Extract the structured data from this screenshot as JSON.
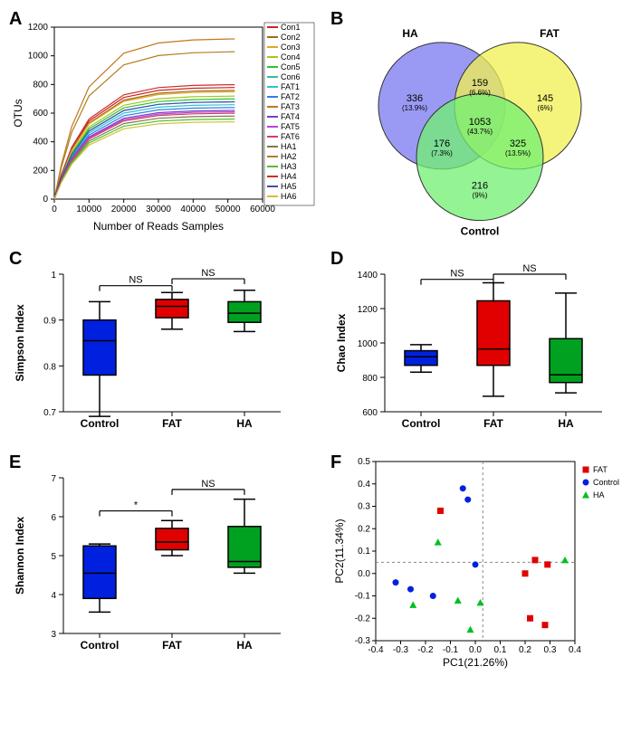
{
  "panelA": {
    "label": "A",
    "type": "line",
    "xlabel": "Number of Reads Samples",
    "ylabel": "OTUs",
    "xlim": [
      0,
      60000
    ],
    "ylim": [
      0,
      1200
    ],
    "xticks": [
      0,
      10000,
      20000,
      30000,
      40000,
      50000,
      60000
    ],
    "yticks": [
      0,
      200,
      400,
      600,
      800,
      1000,
      1200
    ],
    "legend": [
      {
        "label": "Con1",
        "color": "#d42020"
      },
      {
        "label": "Con2",
        "color": "#9d6d1c"
      },
      {
        "label": "Con3",
        "color": "#e0a828"
      },
      {
        "label": "Con4",
        "color": "#a0c828"
      },
      {
        "label": "Con5",
        "color": "#30c030"
      },
      {
        "label": "Con6",
        "color": "#30c0a0"
      },
      {
        "label": "FAT1",
        "color": "#30c0e0"
      },
      {
        "label": "FAT2",
        "color": "#3080e0"
      },
      {
        "label": "FAT3",
        "color": "#c07820"
      },
      {
        "label": "FAT4",
        "color": "#7040d0"
      },
      {
        "label": "FAT5",
        "color": "#c040d0"
      },
      {
        "label": "FAT6",
        "color": "#d04060"
      },
      {
        "label": "HA1",
        "color": "#807850"
      },
      {
        "label": "HA2",
        "color": "#b08020"
      },
      {
        "label": "HA3",
        "color": "#50c030"
      },
      {
        "label": "HA4",
        "color": "#c83030"
      },
      {
        "label": "HA5",
        "color": "#4050b0"
      },
      {
        "label": "HA6",
        "color": "#d0c030"
      }
    ],
    "curves_end": [
      780,
      760,
      750,
      720,
      700,
      680,
      660,
      640,
      1120,
      620,
      610,
      600,
      580,
      1030,
      560,
      800,
      680,
      540
    ],
    "highlight_curves": {
      "8": 1120,
      "13": 1030,
      "15": 800
    }
  },
  "panelB": {
    "label": "B",
    "type": "venn",
    "groups": [
      {
        "name": "HA",
        "color": "#7878f0",
        "opacity": 0.75
      },
      {
        "name": "FAT",
        "color": "#f0f050",
        "opacity": 0.75
      },
      {
        "name": "Control",
        "color": "#70f070",
        "opacity": 0.75
      }
    ],
    "regions": {
      "HA_only": {
        "n": 336,
        "pct": "(13.9%)"
      },
      "FAT_only": {
        "n": 145,
        "pct": "(6%)"
      },
      "Control_only": {
        "n": 216,
        "pct": "(9%)"
      },
      "HA_FAT": {
        "n": 159,
        "pct": "(6.6%)"
      },
      "HA_Control": {
        "n": 176,
        "pct": "(7.3%)"
      },
      "FAT_Control": {
        "n": 325,
        "pct": "(13.5%)"
      },
      "all": {
        "n": 1053,
        "pct": "(43.7%)"
      }
    }
  },
  "panelC": {
    "label": "C",
    "type": "boxplot",
    "ylabel": "Simpson Index",
    "ylim": [
      0.7,
      1.0
    ],
    "yticks": [
      0.7,
      0.8,
      0.9,
      1.0
    ],
    "categories": [
      "Control",
      "FAT",
      "HA"
    ],
    "colors": [
      "#0020e0",
      "#e00000",
      "#00a020"
    ],
    "boxes": [
      {
        "min": 0.69,
        "q1": 0.78,
        "med": 0.855,
        "q3": 0.9,
        "max": 0.94
      },
      {
        "min": 0.88,
        "q1": 0.905,
        "med": 0.93,
        "q3": 0.945,
        "max": 0.96
      },
      {
        "min": 0.875,
        "q1": 0.895,
        "med": 0.915,
        "q3": 0.94,
        "max": 0.965
      }
    ],
    "annotations": [
      {
        "from": 0,
        "to": 1,
        "text": "NS",
        "y": 0.975
      },
      {
        "from": 1,
        "to": 2,
        "text": "NS",
        "y": 0.99
      }
    ]
  },
  "panelD": {
    "label": "D",
    "type": "boxplot",
    "ylabel": "Chao Index",
    "ylim": [
      600,
      1400
    ],
    "yticks": [
      600,
      800,
      1000,
      1200,
      1400
    ],
    "categories": [
      "Control",
      "FAT",
      "HA"
    ],
    "colors": [
      "#0020e0",
      "#e00000",
      "#00a020"
    ],
    "boxes": [
      {
        "min": 830,
        "q1": 870,
        "med": 920,
        "q3": 955,
        "max": 990
      },
      {
        "min": 690,
        "q1": 870,
        "med": 965,
        "q3": 1245,
        "max": 1350
      },
      {
        "min": 710,
        "q1": 770,
        "med": 815,
        "q3": 1025,
        "max": 1290
      }
    ],
    "annotations": [
      {
        "from": 0,
        "to": 1,
        "text": "NS",
        "y": 1370
      },
      {
        "from": 1,
        "to": 2,
        "text": "NS",
        "y": 1400
      }
    ]
  },
  "panelE": {
    "label": "E",
    "type": "boxplot",
    "ylabel": "Shannon Index",
    "ylim": [
      3,
      7
    ],
    "yticks": [
      3,
      4,
      5,
      6,
      7
    ],
    "categories": [
      "Control",
      "FAT",
      "HA"
    ],
    "colors": [
      "#0020e0",
      "#e00000",
      "#00a020"
    ],
    "boxes": [
      {
        "min": 3.55,
        "q1": 3.9,
        "med": 4.55,
        "q3": 5.25,
        "max": 5.3
      },
      {
        "min": 5.0,
        "q1": 5.15,
        "med": 5.35,
        "q3": 5.7,
        "max": 5.9
      },
      {
        "min": 4.55,
        "q1": 4.7,
        "med": 4.85,
        "q3": 5.75,
        "max": 6.45
      }
    ],
    "annotations": [
      {
        "from": 0,
        "to": 1,
        "text": "*",
        "y": 6.15
      },
      {
        "from": 1,
        "to": 2,
        "text": "NS",
        "y": 6.7
      }
    ]
  },
  "panelF": {
    "label": "F",
    "type": "scatter",
    "xlabel": "PC1(21.26%)",
    "ylabel": "PC2(11.34%)",
    "xlim": [
      -0.4,
      0.4
    ],
    "ylim": [
      -0.3,
      0.5
    ],
    "xticks": [
      -0.4,
      -0.3,
      -0.2,
      -0.1,
      0.0,
      0.1,
      0.2,
      0.3,
      0.4
    ],
    "yticks": [
      -0.3,
      -0.2,
      -0.1,
      0.0,
      0.1,
      0.2,
      0.3,
      0.4,
      0.5
    ],
    "legend": [
      {
        "label": "FAT",
        "marker": "square",
        "color": "#e00000"
      },
      {
        "label": "Control",
        "marker": "circle",
        "color": "#0020e0"
      },
      {
        "label": "HA",
        "marker": "triangle",
        "color": "#00c020"
      }
    ],
    "points": {
      "FAT": [
        {
          "x": -0.14,
          "y": 0.28
        },
        {
          "x": 0.2,
          "y": 0.0
        },
        {
          "x": 0.24,
          "y": 0.06
        },
        {
          "x": 0.29,
          "y": 0.04
        },
        {
          "x": 0.22,
          "y": -0.2
        },
        {
          "x": 0.28,
          "y": -0.23
        }
      ],
      "Control": [
        {
          "x": -0.32,
          "y": -0.04
        },
        {
          "x": -0.26,
          "y": -0.07
        },
        {
          "x": -0.17,
          "y": -0.1
        },
        {
          "x": -0.05,
          "y": 0.38
        },
        {
          "x": -0.03,
          "y": 0.33
        },
        {
          "x": 0.0,
          "y": 0.04
        }
      ],
      "HA": [
        {
          "x": -0.15,
          "y": 0.14
        },
        {
          "x": -0.25,
          "y": -0.14
        },
        {
          "x": -0.07,
          "y": -0.12
        },
        {
          "x": 0.02,
          "y": -0.13
        },
        {
          "x": -0.02,
          "y": -0.25
        },
        {
          "x": 0.36,
          "y": 0.06
        }
      ]
    },
    "origin_lines": true
  }
}
